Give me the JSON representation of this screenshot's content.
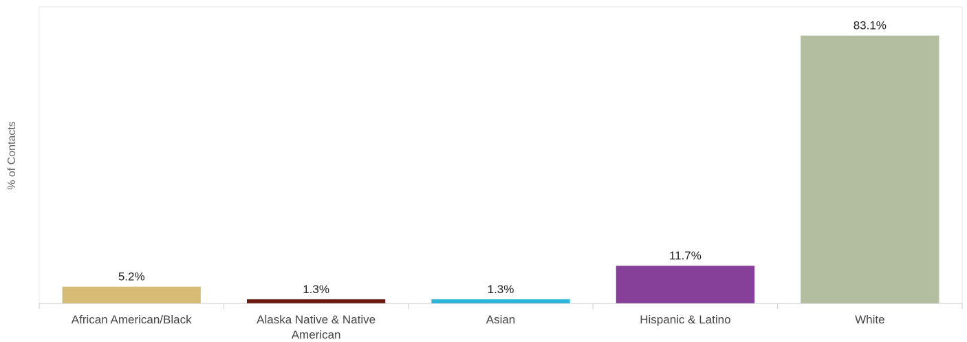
{
  "chart_data": {
    "type": "bar",
    "title": "",
    "xlabel": "",
    "ylabel": "% of Contacts",
    "categories": [
      [
        "African American/Black"
      ],
      [
        "Alaska Native & Native",
        "American"
      ],
      [
        "Asian"
      ],
      [
        "Hispanic & Latino"
      ],
      [
        "White"
      ]
    ],
    "values": [
      5.2,
      1.3,
      1.3,
      11.7,
      83.1
    ],
    "value_labels": [
      "5.2%",
      "1.3%",
      "1.3%",
      "11.7%",
      "83.1%"
    ],
    "colors": [
      "#d6bc75",
      "#6b1a12",
      "#2bb5d8",
      "#87409a",
      "#b3bda0"
    ],
    "ylim": [
      0,
      92
    ],
    "grid": false,
    "legend": "none"
  }
}
